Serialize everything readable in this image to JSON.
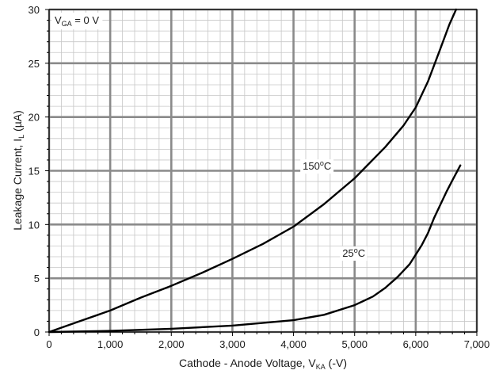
{
  "chart_data": {
    "type": "line",
    "xlabel": {
      "main": "Cathode - Anode Voltage, V",
      "sub": "KA",
      "suffix": " (-V)"
    },
    "ylabel": {
      "main": "Leakage Current, I",
      "sub": "L",
      "suffix": " (µA)"
    },
    "xlim": [
      0,
      7000
    ],
    "ylim": [
      0,
      30
    ],
    "x_major_ticks": [
      0,
      1000,
      2000,
      3000,
      4000,
      5000,
      6000,
      7000
    ],
    "x_tick_labels": [
      "0",
      "1,000",
      "2,000",
      "3,000",
      "4,000",
      "5,000",
      "6,000",
      "7,000"
    ],
    "y_major_ticks": [
      0,
      5,
      10,
      15,
      20,
      25,
      30
    ],
    "y_tick_labels": [
      "0",
      "5",
      "10",
      "15",
      "20",
      "25",
      "30"
    ],
    "x_minor_step": 200,
    "y_minor_step": 1,
    "grid": true,
    "condition": {
      "main": "V",
      "sub": "GA",
      "suffix": " = 0 V"
    },
    "series": [
      {
        "name": "150°C",
        "label": {
          "main": "150",
          "sup": "o",
          "suffix": "C"
        },
        "label_at": [
          4150,
          15.1
        ],
        "x": [
          0,
          500,
          1000,
          1500,
          2000,
          2500,
          3000,
          3500,
          4000,
          4500,
          5000,
          5500,
          5800,
          6000,
          6200,
          6400,
          6550,
          6660
        ],
        "y": [
          0,
          1.0,
          2.0,
          3.2,
          4.3,
          5.5,
          6.8,
          8.2,
          9.8,
          11.9,
          14.3,
          17.2,
          19.2,
          20.9,
          23.3,
          26.3,
          28.6,
          30.0
        ]
      },
      {
        "name": "25°C",
        "label": {
          "main": "25",
          "sup": "o",
          "suffix": "C"
        },
        "label_at": [
          4800,
          7.0
        ],
        "x": [
          0,
          1000,
          2000,
          3000,
          4000,
          4500,
          5000,
          5300,
          5500,
          5700,
          5900,
          6000,
          6100,
          6200,
          6300,
          6400,
          6500,
          6600,
          6730
        ],
        "y": [
          0,
          0.1,
          0.3,
          0.6,
          1.1,
          1.6,
          2.5,
          3.3,
          4.1,
          5.1,
          6.3,
          7.2,
          8.1,
          9.2,
          10.6,
          11.8,
          13.0,
          14.1,
          15.5
        ]
      }
    ]
  }
}
